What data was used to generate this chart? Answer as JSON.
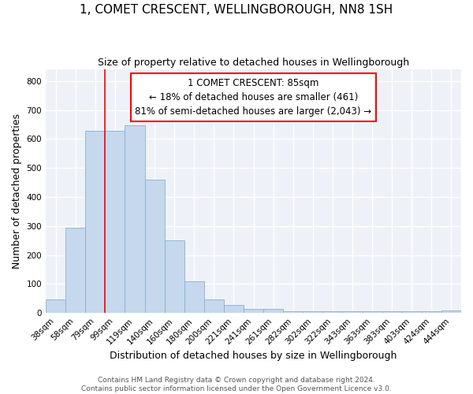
{
  "title": "1, COMET CRESCENT, WELLINGBOROUGH, NN8 1SH",
  "subtitle": "Size of property relative to detached houses in Wellingborough",
  "xlabel": "Distribution of detached houses by size in Wellingborough",
  "ylabel": "Number of detached properties",
  "bar_color": "#c5d8ed",
  "bar_edge_color": "#8ab0d0",
  "categories": [
    "38sqm",
    "58sqm",
    "79sqm",
    "99sqm",
    "119sqm",
    "140sqm",
    "160sqm",
    "180sqm",
    "200sqm",
    "221sqm",
    "241sqm",
    "261sqm",
    "282sqm",
    "302sqm",
    "322sqm",
    "343sqm",
    "363sqm",
    "383sqm",
    "403sqm",
    "424sqm",
    "444sqm"
  ],
  "values": [
    48,
    293,
    627,
    627,
    648,
    460,
    250,
    110,
    48,
    28,
    15,
    15,
    5,
    5,
    5,
    5,
    5,
    5,
    5,
    5,
    8
  ],
  "red_line_index": 2,
  "annotation_line1": "1 COMET CRESCENT: 85sqm",
  "annotation_line2": "← 18% of detached houses are smaller (461)",
  "annotation_line3": "81% of semi-detached houses are larger (2,043) →",
  "ylim": [
    0,
    840
  ],
  "yticks": [
    0,
    100,
    200,
    300,
    400,
    500,
    600,
    700,
    800
  ],
  "footer_line1": "Contains HM Land Registry data © Crown copyright and database right 2024.",
  "footer_line2": "Contains public sector information licensed under the Open Government Licence v3.0.",
  "bg_color": "#eef2f8",
  "grid_color": "#ffffff",
  "title_fontsize": 11,
  "subtitle_fontsize": 9,
  "axis_label_fontsize": 9,
  "tick_fontsize": 7.5,
  "footer_fontsize": 6.5
}
